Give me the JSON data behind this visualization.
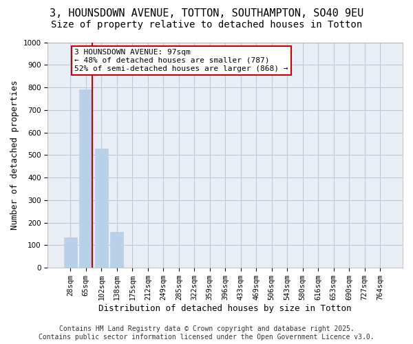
{
  "title_line1": "3, HOUNSDOWN AVENUE, TOTTON, SOUTHAMPTON, SO40 9EU",
  "title_line2": "Size of property relative to detached houses in Totton",
  "xlabel": "Distribution of detached houses by size in Totton",
  "ylabel": "Number of detached properties",
  "categories": [
    "28sqm",
    "65sqm",
    "102sqm",
    "138sqm",
    "175sqm",
    "212sqm",
    "249sqm",
    "285sqm",
    "322sqm",
    "359sqm",
    "396sqm",
    "433sqm",
    "469sqm",
    "506sqm",
    "543sqm",
    "580sqm",
    "616sqm",
    "653sqm",
    "690sqm",
    "727sqm",
    "764sqm"
  ],
  "bar_heights": [
    135,
    790,
    530,
    160,
    0,
    0,
    0,
    0,
    0,
    0,
    0,
    0,
    0,
    0,
    0,
    0,
    0,
    0,
    0,
    0,
    0
  ],
  "bar_color": "#b8d0e8",
  "bar_edge_color": "#b8d0e8",
  "grid_color": "#c0c8d8",
  "background_color": "#e8eef4",
  "vline_color": "#cc0000",
  "vline_pos": 1.425,
  "ylim": [
    0,
    1000
  ],
  "yticks": [
    0,
    100,
    200,
    300,
    400,
    500,
    600,
    700,
    800,
    900,
    1000
  ],
  "annotation_text": "3 HOUNSDOWN AVENUE: 97sqm\n← 48% of detached houses are smaller (787)\n52% of semi-detached houses are larger (868) →",
  "annotation_box_color": "#cc0000",
  "footer_text": "Contains HM Land Registry data © Crown copyright and database right 2025.\nContains public sector information licensed under the Open Government Licence v3.0.",
  "fig_bg_color": "#ffffff",
  "title_fontsize": 11,
  "subtitle_fontsize": 10,
  "annotation_fontsize": 8,
  "tick_fontsize": 7.5,
  "label_fontsize": 9,
  "footer_fontsize": 7
}
